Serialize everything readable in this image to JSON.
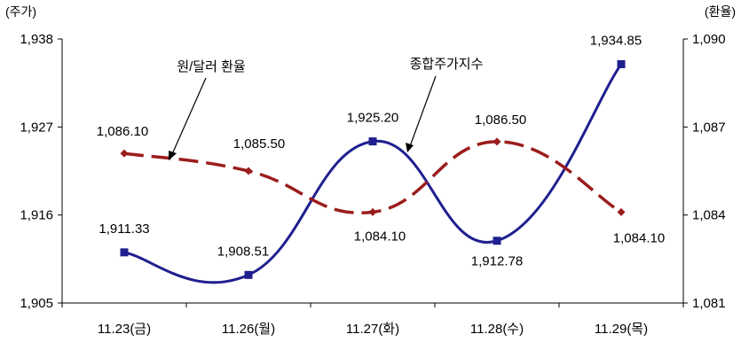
{
  "chart_data": {
    "type": "line",
    "categories": [
      "11.23(금)",
      "11.26(월)",
      "11.27(화)",
      "11.28(수)",
      "11.29(목)"
    ],
    "y_left": {
      "unit": "(주가)",
      "ticks": [
        "1,938",
        "1,927",
        "1,916",
        "1,905"
      ],
      "range": [
        1905,
        1938
      ]
    },
    "y_right": {
      "unit": "(환율)",
      "ticks": [
        "1,090",
        "1,087",
        "1,084",
        "1,081"
      ],
      "range": [
        1081,
        1090
      ]
    },
    "grid": false,
    "series": [
      {
        "name": "종합주가지수",
        "axis": "left",
        "color": "#1f1f8f",
        "style": "solid",
        "values": [
          1911.33,
          1908.51,
          1925.2,
          1912.78,
          1934.85
        ],
        "labels": [
          "1,911.33",
          "1,908.51",
          "1,925.20",
          "1,912.78",
          "1,934.85"
        ]
      },
      {
        "name": "원/달러 환율",
        "axis": "right",
        "color": "#9b1c1c",
        "style": "dashed",
        "values": [
          1086.1,
          1085.5,
          1084.1,
          1086.5,
          1084.1
        ],
        "labels": [
          "1,086.10",
          "1,085.50",
          "1,084.10",
          "1,086.50",
          "1,084.10"
        ]
      }
    ]
  }
}
